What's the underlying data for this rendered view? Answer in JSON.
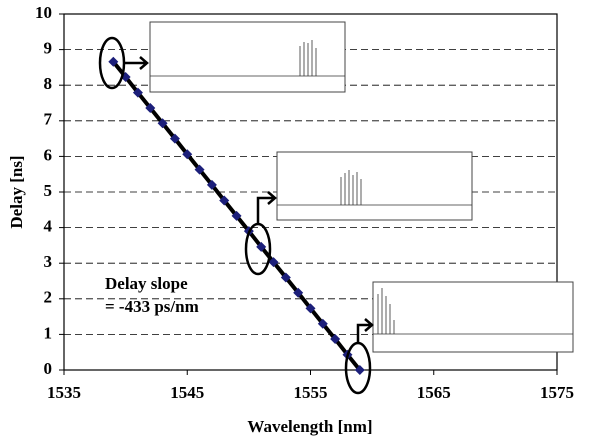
{
  "chart_data": {
    "type": "line",
    "x_label": "Wavelength [nm]",
    "y_label": "Delay [ns]",
    "annotation": [
      "Delay slope",
      "= -433 ps/nm"
    ],
    "x": [
      1539,
      1540,
      1541,
      1542,
      1543,
      1544,
      1545,
      1546,
      1547,
      1548,
      1549,
      1550,
      1551,
      1552,
      1553,
      1554,
      1555,
      1556,
      1557,
      1558,
      1559
    ],
    "series": [
      {
        "color": "#1c1f7a",
        "values": [
          8.66,
          8.23,
          7.79,
          7.36,
          6.93,
          6.5,
          6.06,
          5.63,
          5.2,
          4.76,
          4.33,
          3.9,
          3.46,
          3.03,
          2.6,
          2.17,
          1.73,
          1.3,
          0.87,
          0.43,
          0.0
        ]
      }
    ],
    "xlim": [
      1535,
      1575
    ],
    "xticks": [
      1535,
      1545,
      1555,
      1565,
      1575
    ],
    "ylim": [
      0,
      10
    ],
    "yticks": [
      0,
      1,
      2,
      3,
      4,
      5,
      6,
      7,
      8,
      9,
      10
    ],
    "grid": true
  }
}
